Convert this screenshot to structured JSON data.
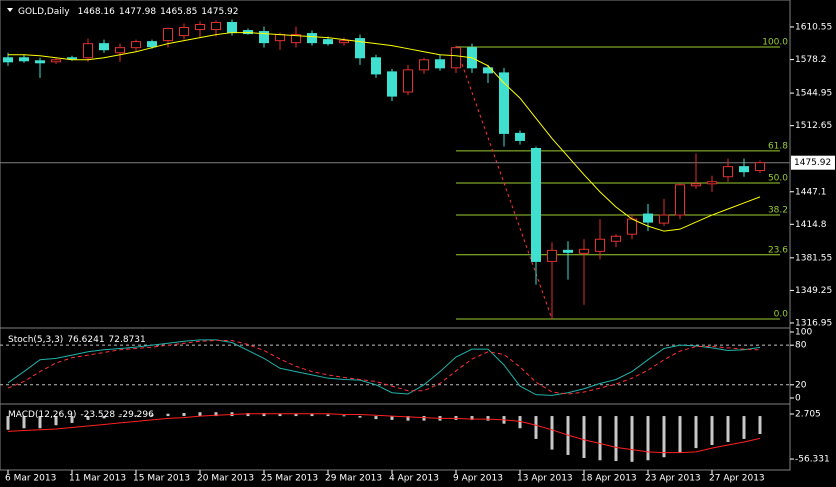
{
  "chart_data": [
    {
      "type": "candlestick",
      "title": "GOLD,Daily",
      "categories": [
        "6 Mar 2013",
        null,
        null,
        null,
        "11 Mar 2013",
        null,
        null,
        null,
        "15 Mar 2013",
        null,
        null,
        null,
        "20 Mar 2013",
        null,
        null,
        null,
        "25 Mar 2013",
        null,
        null,
        null,
        "29 Mar 2013",
        null,
        null,
        null,
        "4 Apr 2013",
        null,
        null,
        null,
        "9 Apr 2013",
        null,
        null,
        null,
        "13 Apr 2013",
        null,
        null,
        null,
        "18 Apr 2013",
        null,
        null,
        null,
        "23 Apr 2013",
        null,
        null,
        null,
        "27 Apr 2013",
        null,
        null,
        null
      ],
      "open": [
        1580,
        1580,
        1577,
        1576,
        1580,
        1580,
        1594,
        1585,
        1590,
        1596,
        1597,
        1602,
        1608,
        1608,
        1615,
        1607,
        1606,
        1597,
        1595,
        1604,
        1598,
        1595,
        1599,
        1580,
        1566,
        1546,
        1568,
        1578,
        1570,
        1590,
        1570,
        1565,
        1505,
        1490,
        1378,
        1389,
        1386,
        1388,
        1398,
        1405,
        1425,
        1416,
        1424,
        1453,
        1455,
        1462,
        1472,
        1468.16
      ],
      "high": [
        1585,
        1583,
        1580,
        1580,
        1582,
        1599,
        1598,
        1594,
        1598,
        1598,
        1610,
        1614,
        1616,
        1617,
        1618,
        1609,
        1611,
        1605,
        1611,
        1607,
        1601,
        1600,
        1603,
        1583,
        1569,
        1573,
        1580,
        1583,
        1592,
        1594,
        1573,
        1570,
        1508,
        1492,
        1397,
        1398,
        1400,
        1420,
        1405,
        1425,
        1435,
        1440,
        1455,
        1485,
        1463,
        1480,
        1480,
        1477.98
      ],
      "low": [
        1572,
        1575,
        1560,
        1574,
        1577,
        1576,
        1585,
        1576,
        1586,
        1589,
        1590,
        1598,
        1600,
        1601,
        1602,
        1603,
        1590,
        1588,
        1590,
        1592,
        1592,
        1592,
        1573,
        1560,
        1537,
        1543,
        1564,
        1567,
        1565,
        1565,
        1555,
        1492,
        1494,
        1355,
        1321,
        1360,
        1335,
        1380,
        1392,
        1400,
        1408,
        1413,
        1420,
        1450,
        1447,
        1457,
        1462,
        1465.85
      ],
      "close": [
        1576,
        1577,
        1575,
        1578,
        1579,
        1594,
        1588,
        1590,
        1596,
        1591,
        1609,
        1610,
        1613,
        1615,
        1605,
        1604,
        1595,
        1603,
        1603,
        1595,
        1594,
        1597,
        1580,
        1564,
        1542,
        1568,
        1578,
        1570,
        1590,
        1570,
        1565,
        1505,
        1498,
        1378,
        1389,
        1387,
        1390,
        1400,
        1403,
        1420,
        1417,
        1424,
        1454,
        1455,
        1457,
        1472,
        1467,
        1475.92
      ],
      "up_color": "#e03030",
      "down_color": "#40e0d0",
      "ma": {
        "color": "#ffff00",
        "values": [
          1583,
          1583,
          1582,
          1580,
          1578,
          1578,
          1580,
          1583,
          1586,
          1590,
          1594,
          1597,
          1600,
          1603,
          1605,
          1605,
          1604,
          1603,
          1602,
          1601,
          1600,
          1598,
          1596,
          1594,
          1592,
          1589,
          1586,
          1583,
          1582,
          1580,
          1572,
          1555,
          1540,
          1520,
          1500,
          1482,
          1464,
          1447,
          1432,
          1420,
          1413,
          1408,
          1410,
          1417,
          1424,
          1430,
          1436,
          1442
        ]
      },
      "fibo": {
        "color": "#9acd32",
        "levels": [
          {
            "label": "100.0",
            "price": 1590.7
          },
          {
            "label": "61.8",
            "price": 1487.6
          },
          {
            "label": "50.0",
            "price": 1455.8
          },
          {
            "label": "38.2",
            "price": 1424.0
          },
          {
            "label": "23.6",
            "price": 1384.6
          },
          {
            "label": "0.0",
            "price": 1320.9
          }
        ]
      },
      "trendline": {
        "color": "#ff3030",
        "from": 1590.7,
        "to": 1320.9
      },
      "ylim": [
        1312.95,
        1637.3
      ],
      "yticks": [
        1610.55,
        1578.2,
        1544.95,
        1512.65,
        1447.1,
        1414.8,
        1381.55,
        1349.25,
        1316.95
      ]
    },
    {
      "type": "line",
      "title": "Stoch(5,3,3)",
      "series": [
        {
          "color": "#20b2aa",
          "values": [
            23,
            40,
            58,
            60,
            65,
            70,
            73,
            75,
            77,
            80,
            83,
            86,
            88,
            88,
            84,
            72,
            60,
            45,
            40,
            35,
            30,
            28,
            27,
            20,
            8,
            6,
            20,
            40,
            62,
            74,
            74,
            50,
            18,
            5,
            4,
            8,
            14,
            22,
            28,
            40,
            58,
            75,
            80,
            79,
            76,
            72,
            73,
            76.6241
          ]
        },
        {
          "color": "#ff3030",
          "dashed": true,
          "values": [
            15,
            25,
            40,
            53,
            61,
            65,
            69,
            73,
            75,
            77,
            80,
            83,
            86,
            87,
            87,
            81,
            72,
            59,
            48,
            40,
            35,
            31,
            28,
            25,
            18,
            11,
            11,
            22,
            41,
            59,
            70,
            66,
            47,
            24,
            9,
            6,
            9,
            15,
            21,
            30,
            42,
            58,
            71,
            78,
            78,
            76,
            74,
            72.8731
          ]
        }
      ],
      "levels": [
        80,
        20
      ],
      "ylim": [
        -7.6,
        103
      ],
      "yticks": [
        100,
        80,
        20,
        0
      ]
    },
    {
      "type": "histogram",
      "title": "MACD(12,26,9)",
      "values": [
        -18,
        -16,
        -16,
        -12,
        -9,
        -5,
        -3,
        -1,
        1,
        2,
        3,
        4,
        5,
        5,
        5,
        4,
        4,
        3,
        3,
        3,
        2,
        1,
        -2,
        -4,
        -5,
        -6,
        -6,
        -6,
        -5,
        -5,
        -6,
        -10,
        -16,
        -30,
        -44,
        -51,
        -55,
        -58,
        -59,
        -60,
        -58,
        -54,
        -48,
        -42,
        -38,
        -34,
        -30,
        -23.528
      ],
      "color": "#c8c8c8",
      "signal": {
        "color": "#ff2020",
        "values": [
          -20,
          -19,
          -18,
          -17,
          -15,
          -13,
          -11,
          -9,
          -7,
          -5,
          -3,
          -2,
          0,
          1,
          2,
          3,
          3,
          3,
          3,
          3,
          3,
          2,
          2,
          1,
          0,
          -1,
          -2,
          -3,
          -3,
          -4,
          -4,
          -5,
          -7,
          -12,
          -18,
          -25,
          -31,
          -36,
          -41,
          -44,
          -47,
          -48,
          -48,
          -47,
          -42,
          -38,
          -34,
          -29.296
        ]
      },
      "ylim": [
        -68.1,
        13.2
      ],
      "yticks": [
        2.705,
        -56.331
      ]
    }
  ]
}
